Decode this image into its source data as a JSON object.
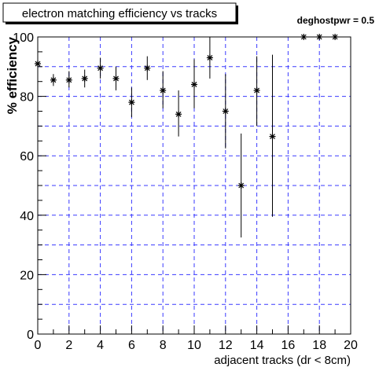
{
  "chart_data": {
    "type": "scatter",
    "title": "electron matching efficiency vs tracks",
    "annotation": "deghostpwr = 0.5",
    "xlabel": "adjacent tracks (dr < 8cm)",
    "ylabel": "% efficiency",
    "xlim": [
      0,
      20
    ],
    "ylim": [
      0,
      100
    ],
    "xticks": [
      "0",
      "2",
      "4",
      "6",
      "8",
      "10",
      "12",
      "14",
      "16",
      "18",
      "20"
    ],
    "yticks": [
      "0",
      "20",
      "40",
      "60",
      "80",
      "100"
    ],
    "grid": true,
    "marker": "asterisk",
    "points": [
      {
        "x": 0,
        "y": 91,
        "lo": 91,
        "hi": 91
      },
      {
        "x": 1,
        "y": 85.5,
        "lo": 83.5,
        "hi": 87.5
      },
      {
        "x": 2,
        "y": 85.5,
        "lo": 83,
        "hi": 88.5
      },
      {
        "x": 3,
        "y": 86,
        "lo": 83,
        "hi": 89
      },
      {
        "x": 4,
        "y": 89.5,
        "lo": 86,
        "hi": 93
      },
      {
        "x": 5,
        "y": 86,
        "lo": 82,
        "hi": 90
      },
      {
        "x": 6,
        "y": 78,
        "lo": 73,
        "hi": 83
      },
      {
        "x": 7,
        "y": 89.5,
        "lo": 85.5,
        "hi": 93.5
      },
      {
        "x": 8,
        "y": 82,
        "lo": 76,
        "hi": 88.5
      },
      {
        "x": 9,
        "y": 74,
        "lo": 66.5,
        "hi": 82
      },
      {
        "x": 10,
        "y": 84,
        "lo": 76,
        "hi": 92.5
      },
      {
        "x": 11,
        "y": 93,
        "lo": 86,
        "hi": 100
      },
      {
        "x": 12,
        "y": 75,
        "lo": 62.5,
        "hi": 87.5
      },
      {
        "x": 13,
        "y": 50,
        "lo": 32.5,
        "hi": 67.5
      },
      {
        "x": 14,
        "y": 82,
        "lo": 70,
        "hi": 93.5
      },
      {
        "x": 15,
        "y": 66.5,
        "lo": 39.5,
        "hi": 94
      },
      {
        "x": 17,
        "y": 100,
        "lo": 100,
        "hi": 100
      },
      {
        "x": 18,
        "y": 100,
        "lo": 100,
        "hi": 100
      },
      {
        "x": 19,
        "y": 100,
        "lo": 100,
        "hi": 100
      }
    ]
  }
}
